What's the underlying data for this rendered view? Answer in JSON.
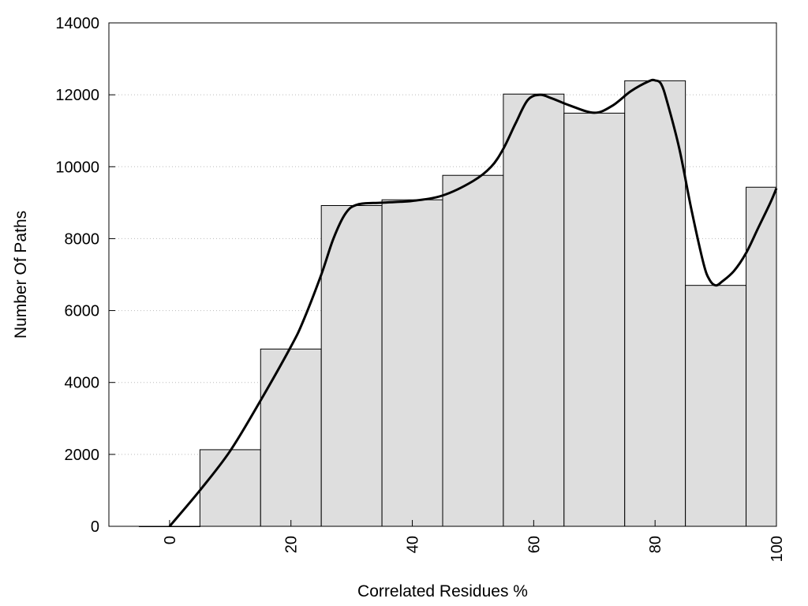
{
  "chart_data": {
    "type": "bar",
    "title": "",
    "xlabel": "Correlated Residues %",
    "ylabel": "Number Of Paths",
    "x": [
      0,
      10,
      20,
      30,
      40,
      50,
      60,
      70,
      80,
      90,
      100
    ],
    "values": [
      0,
      2130,
      4930,
      8920,
      9080,
      9760,
      12020,
      11490,
      12390,
      6700,
      9430
    ],
    "bin_width": 10,
    "xlim": [
      -10,
      100
    ],
    "ylim": [
      0,
      14000
    ],
    "xticks": [
      "0",
      "20",
      "40",
      "60",
      "80",
      "100"
    ],
    "yticks": [
      "0",
      "2000",
      "4000",
      "6000",
      "8000",
      "10000",
      "12000",
      "14000"
    ],
    "grid": "horizontal dotted",
    "bar_color": "#dedede",
    "curve_color": "#000000",
    "curve": [
      [
        0,
        0
      ],
      [
        5,
        1000
      ],
      [
        10,
        2100
      ],
      [
        15,
        3500
      ],
      [
        20,
        5000
      ],
      [
        22,
        5700
      ],
      [
        25,
        7000
      ],
      [
        27,
        8000
      ],
      [
        29,
        8700
      ],
      [
        31,
        8950
      ],
      [
        35,
        9000
      ],
      [
        40,
        9050
      ],
      [
        45,
        9200
      ],
      [
        50,
        9600
      ],
      [
        53,
        10000
      ],
      [
        55,
        10500
      ],
      [
        57,
        11200
      ],
      [
        59,
        11850
      ],
      [
        61,
        12000
      ],
      [
        63,
        11900
      ],
      [
        66,
        11700
      ],
      [
        70,
        11500
      ],
      [
        73,
        11700
      ],
      [
        76,
        12100
      ],
      [
        79,
        12380
      ],
      [
        80,
        12400
      ],
      [
        81,
        12300
      ],
      [
        82,
        11800
      ],
      [
        84,
        10500
      ],
      [
        86,
        8800
      ],
      [
        88,
        7300
      ],
      [
        89,
        6850
      ],
      [
        90,
        6700
      ],
      [
        91,
        6800
      ],
      [
        93,
        7100
      ],
      [
        95,
        7600
      ],
      [
        97,
        8300
      ],
      [
        99,
        9000
      ],
      [
        100,
        9400
      ]
    ]
  }
}
